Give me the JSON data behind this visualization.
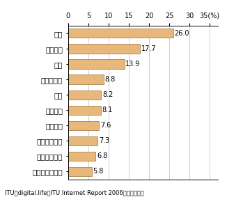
{
  "categories": [
    "ルクセンブルグ",
    "オーストリア",
    "スウェーデン",
    "イギリス",
    "ブルネイ",
    "香港",
    "ボルトガル",
    "日本",
    "イタリア",
    "韓国"
  ],
  "values": [
    5.8,
    6.8,
    7.3,
    7.6,
    8.1,
    8.2,
    8.8,
    13.9,
    17.7,
    26.0
  ],
  "bar_color": "#E8B87A",
  "bar_edge_color": "#A07030",
  "xlim": [
    0,
    37
  ],
  "xticks": [
    0,
    5,
    10,
    15,
    20,
    25,
    30,
    35
  ],
  "footnote": "ITU「digital.life　ITU Internet Report 2006」により作成",
  "label_fontsize": 7.5,
  "tick_fontsize": 7,
  "footnote_fontsize": 6,
  "value_fontsize": 7,
  "bg_color": "#ffffff",
  "grid_color": "#bbbbbb",
  "bar_height": 0.6
}
